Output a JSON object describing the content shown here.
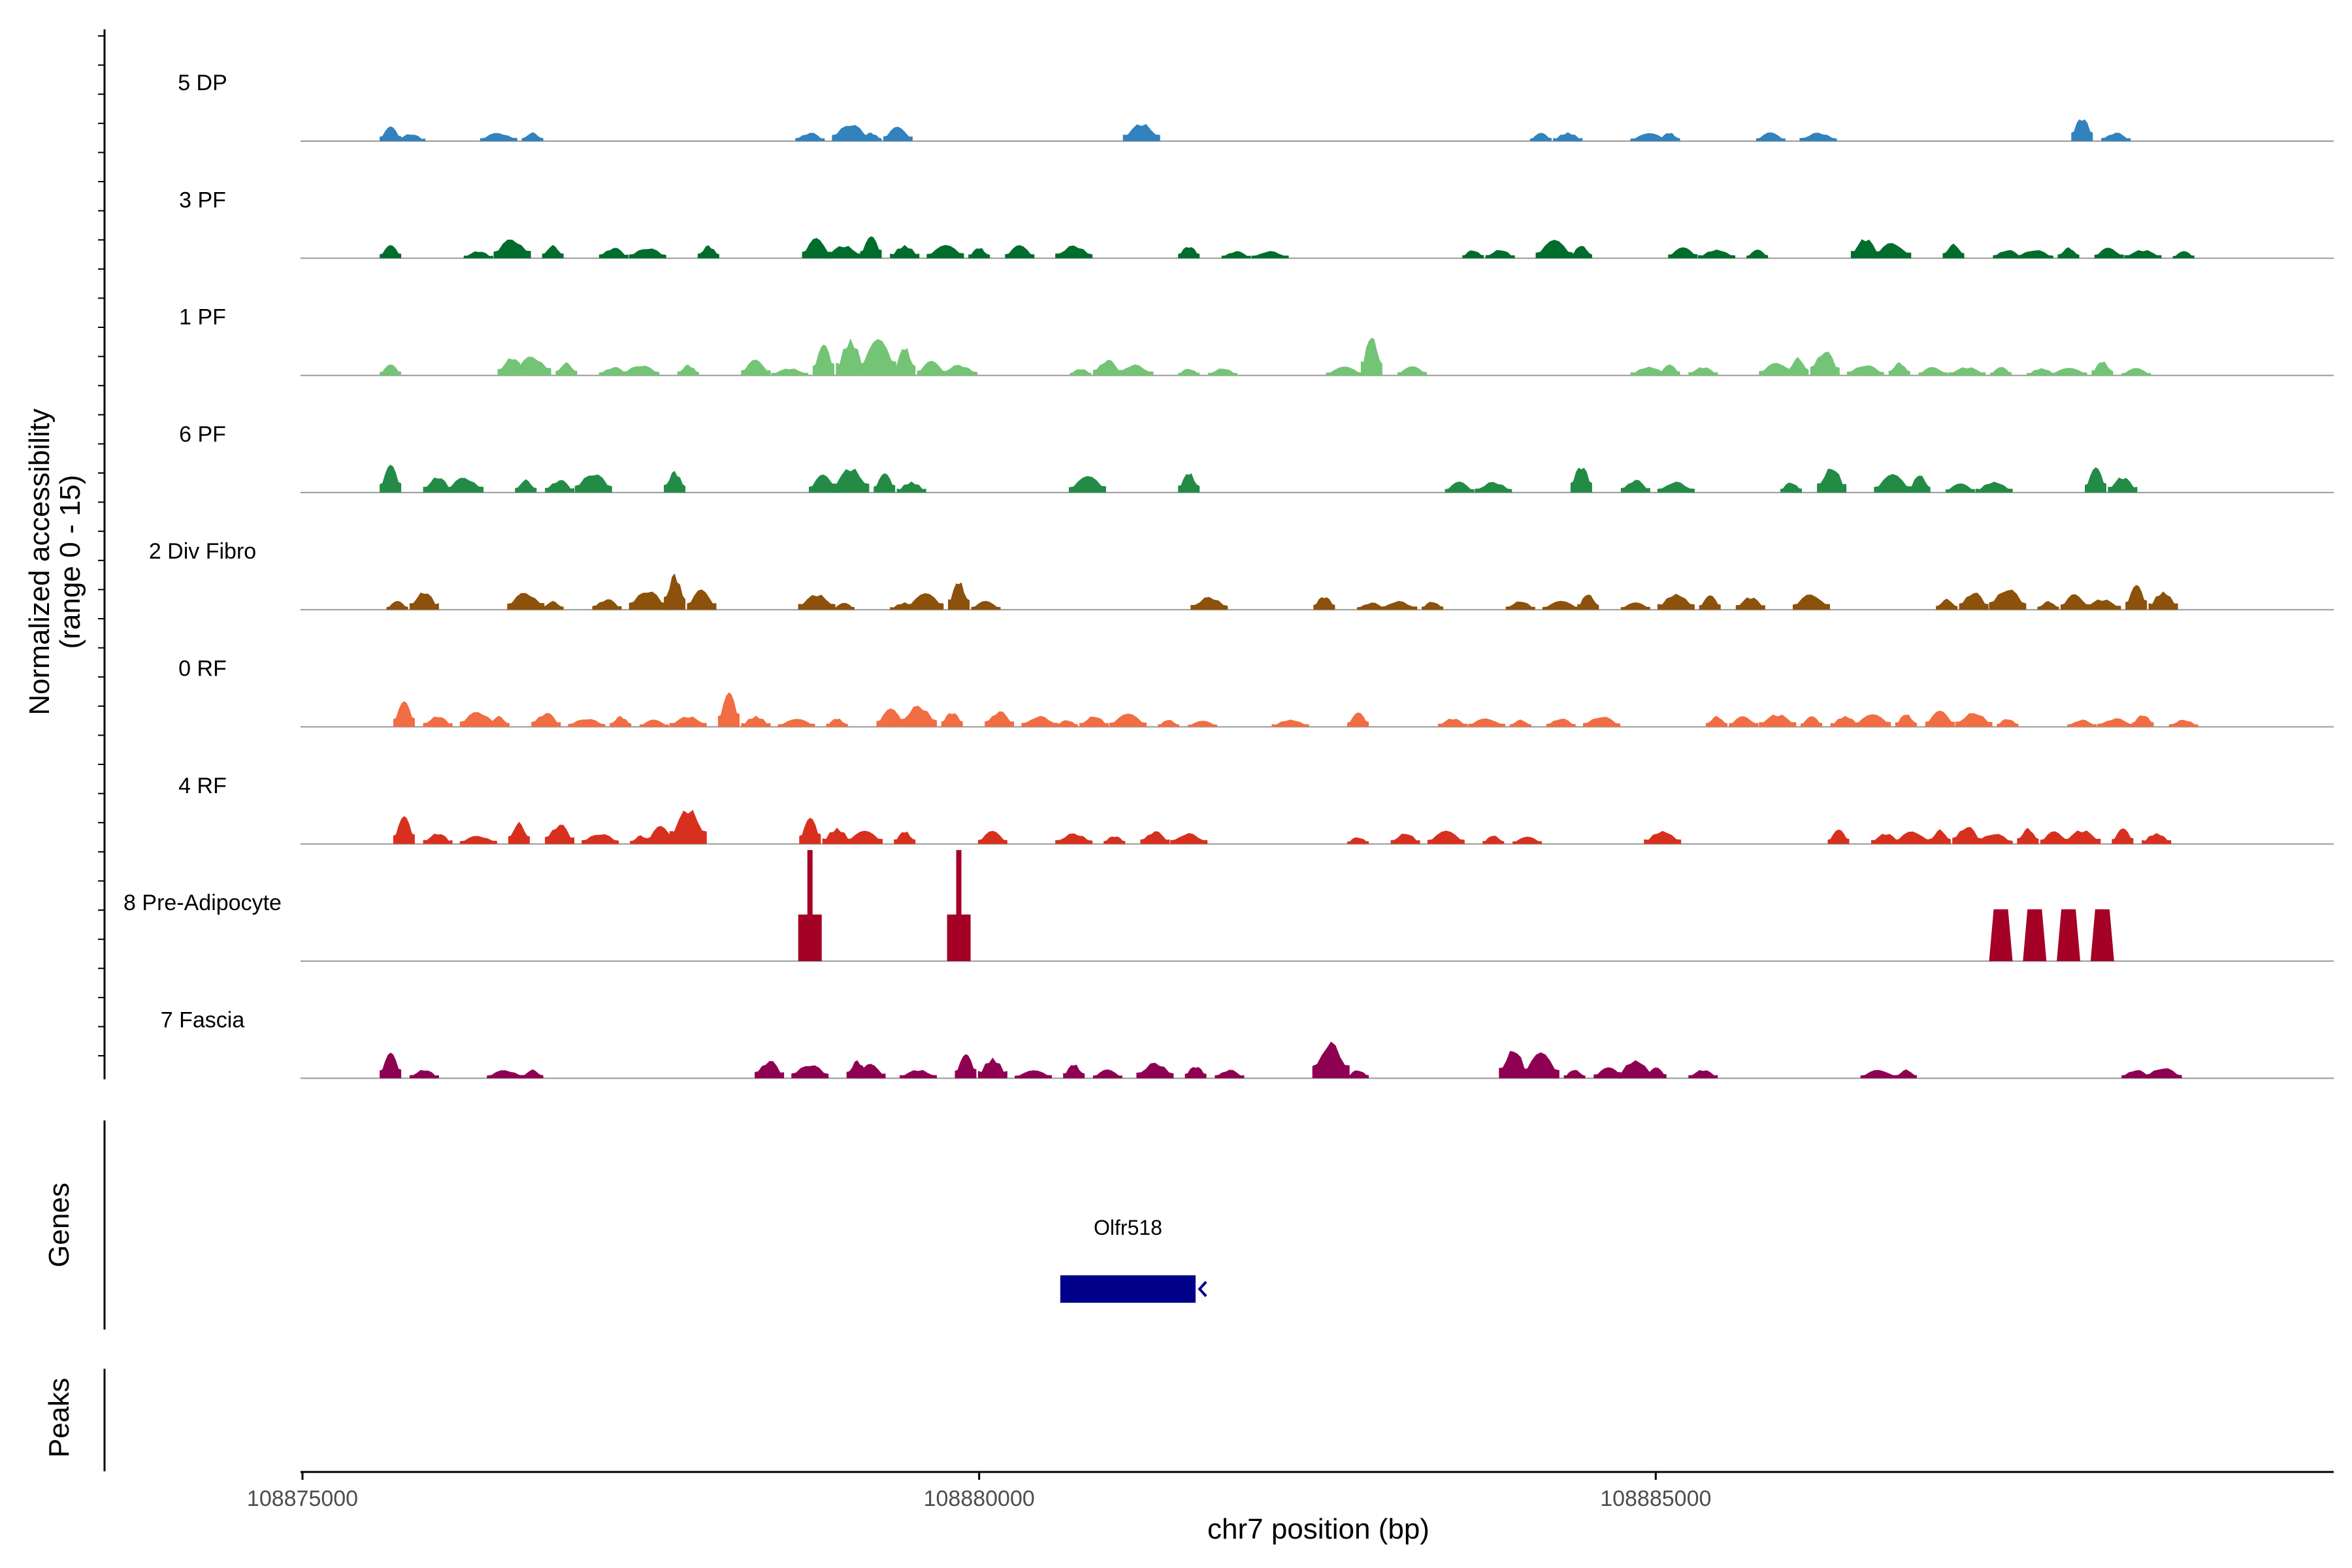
{
  "chart_data": {
    "type": "area",
    "region": {
      "chrom": "chr7",
      "xlim": [
        108875000,
        108890000
      ]
    },
    "xlabel": "chr7 position (bp)",
    "x_ticks": [
      108875000,
      108880000,
      108885000
    ],
    "x_tick_labels": [
      "108875000",
      "108880000",
      "108885000"
    ],
    "ylabel_line1": "Normalized accessibility",
    "ylabel_line2": "(range 0 - 15)",
    "ylim": [
      0,
      15
    ],
    "genes_label": "Genes",
    "peaks_label": "Peaks",
    "genes": [
      {
        "name": "Olfr518",
        "start": 108880600,
        "end": 108881600,
        "strand": "-",
        "color": "#00008B"
      }
    ],
    "tracks": [
      {
        "name": "5 DP",
        "color": "#3182BD",
        "peaks": [
          [
            108875650,
            2.0
          ],
          [
            108875800,
            1.0
          ],
          [
            108876450,
            1.2
          ],
          [
            108876700,
            1.2
          ],
          [
            108878750,
            1.2
          ],
          [
            108879050,
            2.5
          ],
          [
            108879200,
            1.2
          ],
          [
            108879400,
            2.0
          ],
          [
            108881200,
            2.5
          ],
          [
            108884150,
            1.2
          ],
          [
            108884350,
            1.2
          ],
          [
            108884950,
            1.2
          ],
          [
            108885100,
            1.2
          ],
          [
            108885850,
            1.2
          ],
          [
            108886200,
            1.2
          ],
          [
            108888150,
            3.5
          ],
          [
            108888400,
            1.2
          ]
        ]
      },
      {
        "name": "3 PF",
        "color": "#006D2C",
        "peaks": [
          [
            108875650,
            1.8
          ],
          [
            108876300,
            1.0
          ],
          [
            108876550,
            2.8
          ],
          [
            108876850,
            1.8
          ],
          [
            108877300,
            1.5
          ],
          [
            108877550,
            1.5
          ],
          [
            108878000,
            1.8
          ],
          [
            108878800,
            2.8
          ],
          [
            108879000,
            1.8
          ],
          [
            108879200,
            3.2
          ],
          [
            108879450,
            1.8
          ],
          [
            108879750,
            2.0
          ],
          [
            108880000,
            1.5
          ],
          [
            108880300,
            1.8
          ],
          [
            108880700,
            1.8
          ],
          [
            108881550,
            1.8
          ],
          [
            108881900,
            1.0
          ],
          [
            108882150,
            1.0
          ],
          [
            108883650,
            1.2
          ],
          [
            108883850,
            1.2
          ],
          [
            108884250,
            2.5
          ],
          [
            108884450,
            1.8
          ],
          [
            108885200,
            1.8
          ],
          [
            108885450,
            1.2
          ],
          [
            108885750,
            1.2
          ],
          [
            108886550,
            2.8
          ],
          [
            108886750,
            2.2
          ],
          [
            108887200,
            2.0
          ],
          [
            108887600,
            1.2
          ],
          [
            108887800,
            1.2
          ],
          [
            108888050,
            1.5
          ],
          [
            108888350,
            1.5
          ],
          [
            108888600,
            1.2
          ],
          [
            108888900,
            1.0
          ]
        ]
      },
      {
        "name": "1 PF",
        "color": "#74C476",
        "peaks": [
          [
            108875650,
            1.5
          ],
          [
            108876550,
            2.5
          ],
          [
            108876700,
            2.8
          ],
          [
            108876950,
            1.8
          ],
          [
            108877300,
            1.2
          ],
          [
            108877500,
            1.5
          ],
          [
            108877850,
            1.5
          ],
          [
            108878350,
            2.2
          ],
          [
            108878600,
            1.0
          ],
          [
            108878850,
            4.5
          ],
          [
            108879050,
            5.0
          ],
          [
            108879250,
            5.5
          ],
          [
            108879450,
            4.0
          ],
          [
            108879650,
            2.0
          ],
          [
            108879850,
            1.5
          ],
          [
            108880750,
            1.0
          ],
          [
            108880950,
            2.2
          ],
          [
            108881150,
            1.5
          ],
          [
            108881550,
            1.0
          ],
          [
            108881800,
            1.0
          ],
          [
            108882700,
            1.2
          ],
          [
            108882900,
            5.5
          ],
          [
            108883200,
            1.5
          ],
          [
            108884950,
            1.2
          ],
          [
            108885100,
            1.5
          ],
          [
            108885350,
            1.2
          ],
          [
            108885900,
            1.8
          ],
          [
            108886050,
            2.5
          ],
          [
            108886250,
            3.5
          ],
          [
            108886550,
            1.5
          ],
          [
            108886800,
            1.8
          ],
          [
            108887050,
            1.2
          ],
          [
            108887300,
            1.2
          ],
          [
            108887550,
            1.2
          ],
          [
            108887850,
            1.0
          ],
          [
            108888050,
            1.2
          ],
          [
            108888300,
            2.0
          ],
          [
            108888550,
            1.0
          ]
        ]
      },
      {
        "name": "6 PF",
        "color": "#238B45",
        "peaks": [
          [
            108875650,
            3.8
          ],
          [
            108876000,
            2.2
          ],
          [
            108876200,
            2.2
          ],
          [
            108876650,
            1.8
          ],
          [
            108876900,
            1.8
          ],
          [
            108877150,
            2.8
          ],
          [
            108877750,
            3.0
          ],
          [
            108878850,
            2.5
          ],
          [
            108879050,
            3.5
          ],
          [
            108879300,
            2.8
          ],
          [
            108879500,
            1.5
          ],
          [
            108880800,
            2.5
          ],
          [
            108881550,
            2.8
          ],
          [
            108883550,
            1.5
          ],
          [
            108883800,
            1.5
          ],
          [
            108884450,
            4.0
          ],
          [
            108884850,
            1.8
          ],
          [
            108885150,
            1.5
          ],
          [
            108886000,
            1.5
          ],
          [
            108886300,
            3.5
          ],
          [
            108886750,
            2.5
          ],
          [
            108886950,
            2.5
          ],
          [
            108887250,
            1.5
          ],
          [
            108887500,
            1.5
          ],
          [
            108888250,
            3.5
          ],
          [
            108888450,
            2.2
          ]
        ]
      },
      {
        "name": "2 Div Fibro",
        "color": "#8C510A",
        "peaks": [
          [
            108875700,
            1.2
          ],
          [
            108875900,
            2.5
          ],
          [
            108876650,
            2.5
          ],
          [
            108876850,
            1.2
          ],
          [
            108877250,
            1.5
          ],
          [
            108877550,
            2.8
          ],
          [
            108877750,
            5.0
          ],
          [
            108877950,
            2.8
          ],
          [
            108878800,
            2.2
          ],
          [
            108879000,
            1.0
          ],
          [
            108879450,
            1.0
          ],
          [
            108879600,
            2.5
          ],
          [
            108879850,
            4.0
          ],
          [
            108880050,
            1.2
          ],
          [
            108881700,
            1.8
          ],
          [
            108882550,
            2.0
          ],
          [
            108882900,
            1.0
          ],
          [
            108883100,
            1.2
          ],
          [
            108883350,
            1.2
          ],
          [
            108884000,
            1.2
          ],
          [
            108884300,
            1.2
          ],
          [
            108884500,
            2.2
          ],
          [
            108884850,
            1.2
          ],
          [
            108885150,
            2.2
          ],
          [
            108885400,
            2.0
          ],
          [
            108885700,
            1.8
          ],
          [
            108886150,
            2.2
          ],
          [
            108887150,
            1.5
          ],
          [
            108887350,
            2.5
          ],
          [
            108887600,
            3.0
          ],
          [
            108887900,
            1.2
          ],
          [
            108888100,
            2.2
          ],
          [
            108888300,
            1.5
          ],
          [
            108888550,
            3.5
          ],
          [
            108888750,
            2.5
          ]
        ]
      },
      {
        "name": "0 RF",
        "color": "#F16D43",
        "peaks": [
          [
            108875750,
            3.5
          ],
          [
            108876000,
            1.5
          ],
          [
            108876300,
            2.2
          ],
          [
            108876450,
            1.5
          ],
          [
            108876800,
            2.0
          ],
          [
            108877100,
            1.2
          ],
          [
            108877350,
            1.5
          ],
          [
            108877600,
            1.0
          ],
          [
            108877850,
            1.5
          ],
          [
            108878150,
            5.0
          ],
          [
            108878350,
            1.5
          ],
          [
            108878650,
            1.2
          ],
          [
            108878950,
            1.2
          ],
          [
            108879350,
            2.5
          ],
          [
            108879550,
            3.0
          ],
          [
            108879800,
            2.2
          ],
          [
            108880150,
            2.2
          ],
          [
            108880450,
            1.5
          ],
          [
            108880650,
            1.0
          ],
          [
            108880850,
            1.5
          ],
          [
            108881100,
            1.8
          ],
          [
            108881400,
            1.0
          ],
          [
            108881650,
            1.0
          ],
          [
            108882300,
            1.0
          ],
          [
            108882800,
            2.0
          ],
          [
            108883500,
            1.2
          ],
          [
            108883750,
            1.2
          ],
          [
            108884000,
            1.0
          ],
          [
            108884300,
            1.2
          ],
          [
            108884600,
            1.5
          ],
          [
            108885450,
            1.5
          ],
          [
            108885650,
            1.5
          ],
          [
            108885900,
            1.8
          ],
          [
            108886150,
            1.5
          ],
          [
            108886400,
            1.5
          ],
          [
            108886600,
            2.0
          ],
          [
            108886850,
            1.8
          ],
          [
            108887100,
            2.2
          ],
          [
            108887350,
            2.0
          ],
          [
            108887600,
            1.2
          ],
          [
            108888150,
            1.0
          ],
          [
            108888400,
            1.2
          ],
          [
            108888600,
            1.8
          ],
          [
            108888900,
            1.0
          ]
        ]
      },
      {
        "name": "4 RF",
        "color": "#D7301F",
        "peaks": [
          [
            108875750,
            3.8
          ],
          [
            108876000,
            1.5
          ],
          [
            108876300,
            1.2
          ],
          [
            108876600,
            3.0
          ],
          [
            108876900,
            2.8
          ],
          [
            108877200,
            1.5
          ],
          [
            108877500,
            1.2
          ],
          [
            108877650,
            2.5
          ],
          [
            108877850,
            5.0
          ],
          [
            108878750,
            3.8
          ],
          [
            108878950,
            2.2
          ],
          [
            108879150,
            2.0
          ],
          [
            108879450,
            1.8
          ],
          [
            108880100,
            1.8
          ],
          [
            108880700,
            1.5
          ],
          [
            108881000,
            1.2
          ],
          [
            108881300,
            1.8
          ],
          [
            108881550,
            1.5
          ],
          [
            108882800,
            1.0
          ],
          [
            108883150,
            1.5
          ],
          [
            108883450,
            1.8
          ],
          [
            108883800,
            1.2
          ],
          [
            108884050,
            1.2
          ],
          [
            108885050,
            1.8
          ],
          [
            108886350,
            2.0
          ],
          [
            108886700,
            1.5
          ],
          [
            108886900,
            1.8
          ],
          [
            108887100,
            2.0
          ],
          [
            108887300,
            2.5
          ],
          [
            108887500,
            1.5
          ],
          [
            108887750,
            2.2
          ],
          [
            108887950,
            1.8
          ],
          [
            108888150,
            2.0
          ],
          [
            108888450,
            2.2
          ],
          [
            108888700,
            1.5
          ]
        ]
      },
      {
        "name": "8 Pre-Adipocyte",
        "color": "#A50026",
        "peaks": [
          [
            108878750,
            15
          ],
          [
            108879850,
            15
          ],
          [
            108887550,
            7
          ],
          [
            108887800,
            7
          ],
          [
            108888050,
            7
          ],
          [
            108888300,
            7
          ]
        ]
      },
      {
        "name": "7 Fascia",
        "color": "#8E0152",
        "peaks": [
          [
            108875650,
            3.5
          ],
          [
            108875900,
            1.2
          ],
          [
            108876500,
            1.2
          ],
          [
            108876700,
            1.2
          ],
          [
            108878450,
            2.5
          ],
          [
            108878750,
            2.0
          ],
          [
            108879100,
            2.5
          ],
          [
            108879200,
            2.0
          ],
          [
            108879550,
            1.2
          ],
          [
            108879900,
            3.5
          ],
          [
            108880100,
            2.8
          ],
          [
            108880400,
            1.2
          ],
          [
            108880700,
            2.0
          ],
          [
            108880950,
            1.2
          ],
          [
            108881300,
            2.2
          ],
          [
            108881600,
            1.8
          ],
          [
            108881850,
            1.2
          ],
          [
            108882600,
            5.0
          ],
          [
            108882800,
            1.2
          ],
          [
            108883950,
            4.0
          ],
          [
            108884150,
            3.5
          ],
          [
            108884400,
            1.2
          ],
          [
            108884650,
            1.8
          ],
          [
            108884850,
            2.5
          ],
          [
            108885000,
            1.5
          ],
          [
            108885350,
            1.2
          ],
          [
            108886650,
            1.2
          ],
          [
            108886850,
            1.2
          ],
          [
            108888550,
            1.2
          ],
          [
            108888750,
            1.5
          ]
        ]
      }
    ]
  }
}
